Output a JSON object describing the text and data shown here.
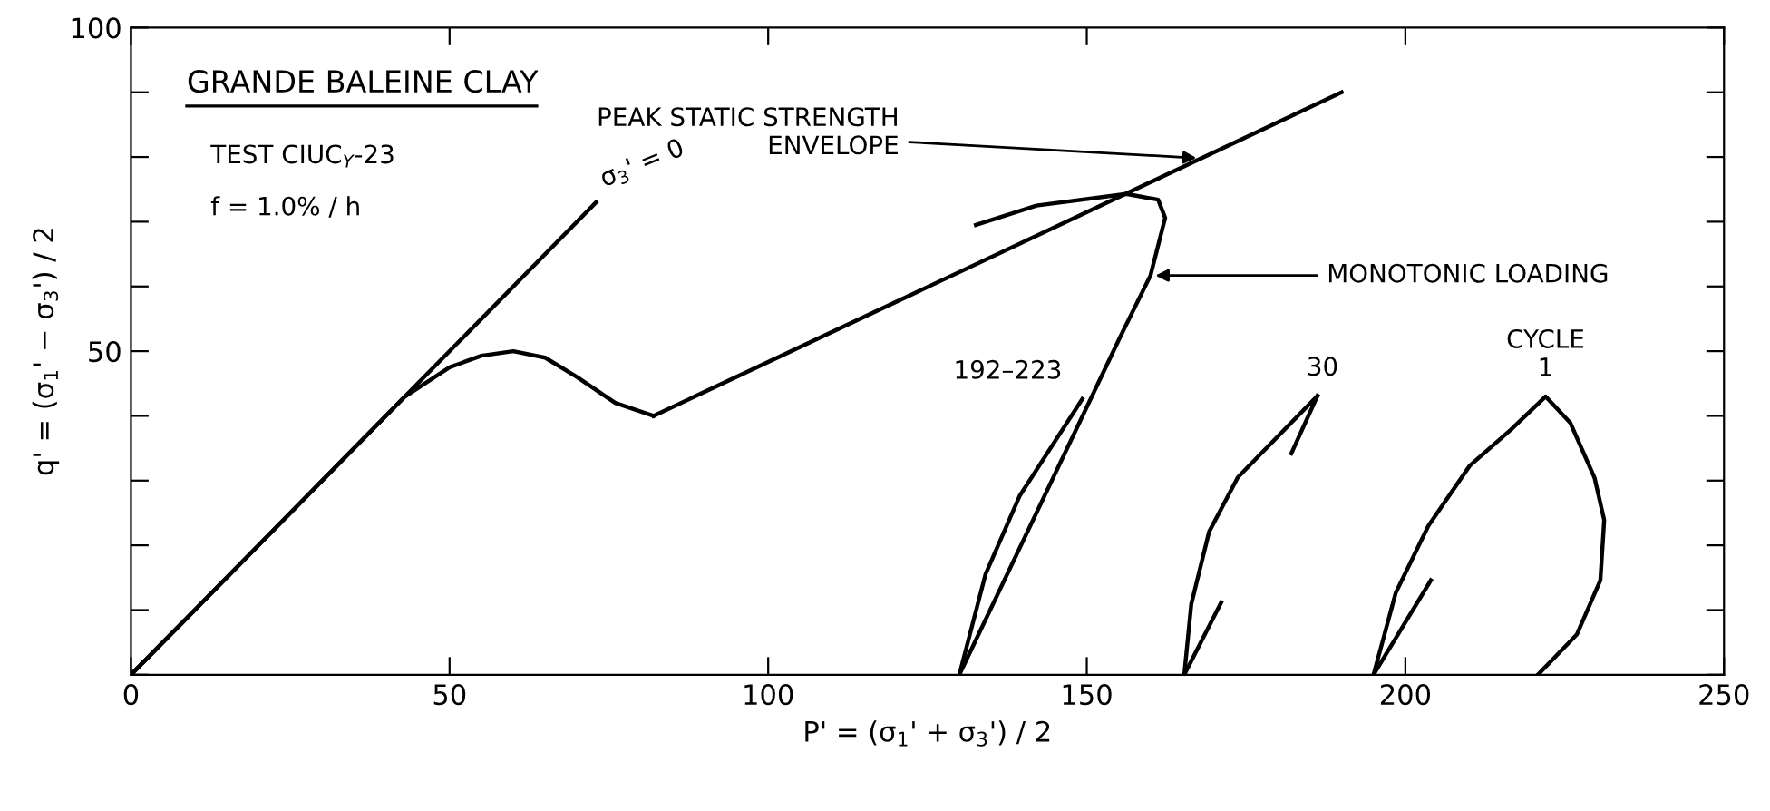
{
  "chart_data": {
    "type": "line",
    "xlabel": "P' = (σ$_{1}$' + σ$_{3}$') / 2",
    "ylabel": "q' = (σ$_{1}$' − σ$_{3}$') / 2",
    "xlim": [
      0,
      250
    ],
    "ylim": [
      0,
      100
    ],
    "xticks": [
      0,
      50,
      100,
      150,
      200,
      250
    ],
    "yticks": [
      {
        "value": 0,
        "label": null
      },
      {
        "value": 10,
        "label": null
      },
      {
        "value": 20,
        "label": null
      },
      {
        "value": 30,
        "label": null
      },
      {
        "value": 40,
        "label": null
      },
      50,
      {
        "value": 60,
        "label": null
      },
      {
        "value": 70,
        "label": null
      },
      {
        "value": 80,
        "label": null
      },
      {
        "value": 90,
        "label": null
      },
      100
    ],
    "grid": false,
    "legend": false,
    "marker": "none",
    "line_style": "solid",
    "series": [
      {
        "name": "σ$_{3}$' = 0",
        "color": "#000000",
        "x": [
          0,
          73
        ],
        "values": [
          0,
          73
        ]
      },
      {
        "color": "#000000",
        "x": [
          0,
          43,
          50,
          55,
          60,
          65,
          70,
          76,
          82
        ],
        "values": [
          0,
          43,
          47.5,
          49.3,
          50,
          49,
          46,
          42,
          40
        ]
      },
      {
        "color": "#000000",
        "x": [
          82,
          190
        ],
        "values": [
          40,
          90
        ]
      },
      {
        "color": "#000000",
        "x": [
          130,
          155.1,
          160,
          162.3,
          161.2,
          156.2,
          142.1,
          132.6
        ],
        "values": [
          0,
          51.9,
          61.7,
          70.6,
          73.4,
          74.3,
          72.5,
          69.5
        ]
      },
      {
        "name": "192–223",
        "color": "#000000",
        "x": [
          149.3,
          139.5,
          134.1,
          130
        ],
        "values": [
          42.6,
          27.7,
          15.5,
          0
        ]
      },
      {
        "name": "30",
        "color": "#000000",
        "x": [
          186.2,
          173.7,
          169.2,
          166.4,
          165.3
        ],
        "values": [
          43.1,
          30.5,
          22.1,
          10.9,
          0
        ]
      },
      {
        "color": "#000000",
        "x": [
          182.1,
          186.2
        ],
        "values": [
          34.2,
          43.1
        ]
      },
      {
        "color": "#000000",
        "x": [
          165.3,
          171.1
        ],
        "values": [
          0,
          11.2
        ]
      },
      {
        "name": "CYCLE\n1",
        "color": "#000000",
        "x": [
          195,
          198.5,
          203.6,
          210.1,
          216.6,
          222,
          225.9,
          229.7,
          231.2,
          230.6,
          226.9,
          220.8
        ],
        "values": [
          0,
          12.7,
          23,
          32.3,
          37.9,
          43,
          38.9,
          30.4,
          23.9,
          14.6,
          6.2,
          0
        ]
      },
      {
        "color": "#000000",
        "x": [
          195,
          204
        ],
        "values": [
          0,
          14.6
        ]
      }
    ],
    "annotations": [
      "GRANDE BALEINE CLAY",
      "TEST CIUC$_{Y}$-23",
      "f = 1.0% / h",
      {
        "text": "PEAK STATIC STRENGTH\nENVELOPE",
        "x": 168,
        "y": 79.8
      },
      {
        "text": "MONOTONIC LOADING",
        "x": 160,
        "y": 61.7
      }
    ]
  }
}
